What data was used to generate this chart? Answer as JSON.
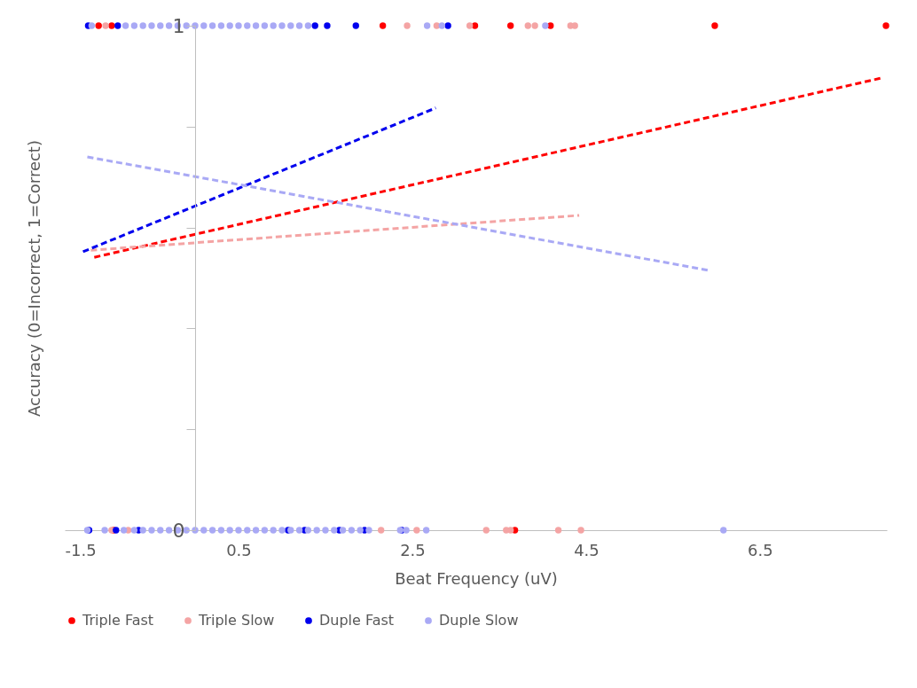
{
  "chart_data": {
    "type": "scatter",
    "xlabel": "Beat Frequency (uV)",
    "ylabel": "Accuracy (0=Incorrect, 1=Correct)",
    "xlim": [
      -1.5,
      7.96
    ],
    "xticks": [
      -1.5,
      0.5,
      2.5,
      4.5,
      6.5
    ],
    "ylim": [
      0,
      1
    ],
    "yticks": [
      0,
      {
        "value": 0.2,
        "label": null
      },
      {
        "value": 0.4,
        "label": null
      },
      {
        "value": 0.6,
        "label": null
      },
      {
        "value": 0.8,
        "label": null
      },
      1
    ],
    "grid": false,
    "legend": "bottom",
    "marker": "circle",
    "series": [
      {
        "name": "Triple Fast",
        "color": "#ff0000",
        "x": [
          -1.11,
          -0.96,
          2.16,
          3.22,
          3.63,
          4.09,
          5.98,
          7.95,
          -0.94,
          3.68
        ],
        "values": [
          1,
          1,
          1,
          1,
          1,
          1,
          1,
          1,
          0,
          0
        ]
      },
      {
        "name": "Triple Slow",
        "color": "#f4a4a4",
        "x": [
          -1.03,
          2.44,
          2.78,
          3.16,
          3.83,
          3.91,
          4.32,
          4.37,
          -0.96,
          -0.77,
          2.14,
          2.55,
          3.35,
          3.58,
          3.63,
          4.18,
          4.44
        ],
        "values": [
          1,
          1,
          1,
          1,
          1,
          1,
          1,
          1,
          0,
          0,
          0,
          0,
          0,
          0,
          0,
          0,
          0
        ]
      },
      {
        "name": "Duple Fast",
        "color": "#0000ee",
        "x": [
          -1.23,
          -0.89,
          1.38,
          1.52,
          1.85,
          2.91,
          -1.22,
          -0.91,
          -0.65,
          1.07,
          1.26,
          1.66,
          1.95,
          2.38
        ],
        "values": [
          1,
          1,
          1,
          1,
          1,
          1,
          0,
          0,
          0,
          0,
          0,
          0,
          0,
          0
        ]
      },
      {
        "name": "Duple Slow",
        "color": "#a9a9f5",
        "x": [
          -1.19,
          -0.8,
          -0.7,
          -0.6,
          -0.5,
          -0.4,
          -0.3,
          -0.2,
          -0.1,
          0.0,
          0.1,
          0.2,
          0.3,
          0.4,
          0.5,
          0.6,
          0.7,
          0.8,
          0.9,
          1.0,
          1.1,
          1.2,
          1.3,
          2.67,
          2.84,
          4.03,
          -1.24,
          -1.04,
          -0.82,
          -0.7,
          -0.6,
          -0.5,
          -0.4,
          -0.3,
          -0.2,
          -0.1,
          0.0,
          0.1,
          0.2,
          0.3,
          0.4,
          0.5,
          0.6,
          0.7,
          0.8,
          0.9,
          1.0,
          1.1,
          1.2,
          1.3,
          1.4,
          1.5,
          1.6,
          1.7,
          1.8,
          1.9,
          2.0,
          2.36,
          2.43,
          2.66,
          6.08
        ],
        "values": [
          1,
          1,
          1,
          1,
          1,
          1,
          1,
          1,
          1,
          1,
          1,
          1,
          1,
          1,
          1,
          1,
          1,
          1,
          1,
          1,
          1,
          1,
          1,
          1,
          1,
          1,
          0,
          0,
          0,
          0,
          0,
          0,
          0,
          0,
          0,
          0,
          0,
          0,
          0,
          0,
          0,
          0,
          0,
          0,
          0,
          0,
          0,
          0,
          0,
          0,
          0,
          0,
          0,
          0,
          0,
          0,
          0,
          0,
          0,
          0,
          0
        ]
      },
      {
        "type": "line",
        "marker": "none",
        "line_style": "dashed",
        "color": "#ff0000",
        "x": [
          -1.16,
          7.89
        ],
        "values": [
          0.541,
          0.896
        ]
      },
      {
        "type": "line",
        "marker": "none",
        "line_style": "dashed",
        "color": "#f4a4a4",
        "x": [
          -1.2,
          4.42
        ],
        "values": [
          0.555,
          0.624
        ]
      },
      {
        "type": "line",
        "marker": "none",
        "line_style": "dashed",
        "color": "#0000ee",
        "x": [
          -1.29,
          2.77
        ],
        "values": [
          0.552,
          0.837
        ]
      },
      {
        "type": "line",
        "marker": "none",
        "line_style": "dashed",
        "color": "#a9a9f5",
        "x": [
          -1.24,
          5.91
        ],
        "values": [
          0.74,
          0.515
        ]
      }
    ]
  }
}
